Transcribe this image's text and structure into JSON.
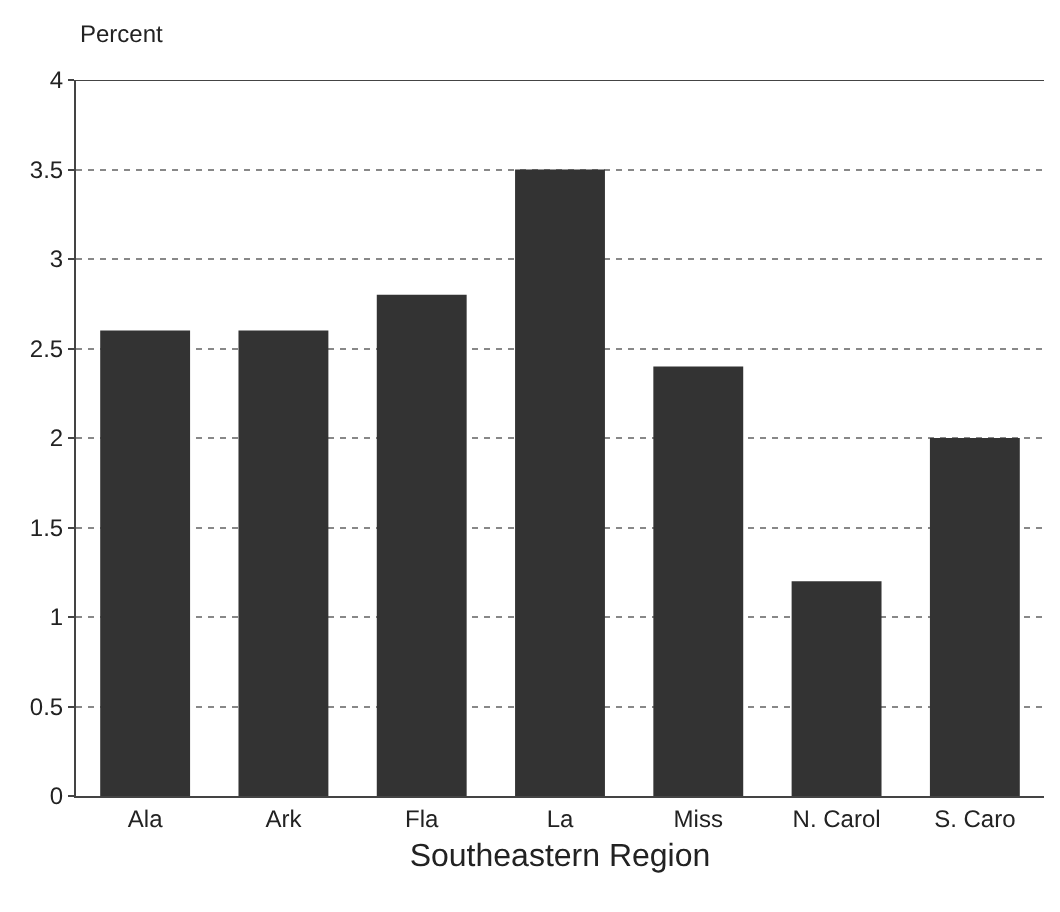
{
  "chart_data": {
    "type": "bar",
    "xlabel": "Southeastern Region",
    "ylabel": "Percent",
    "categories": [
      "Ala",
      "Ark",
      "Fla",
      "La",
      "Miss",
      "N. Carol",
      "S. Caro"
    ],
    "values": [
      2.6,
      2.6,
      2.8,
      3.5,
      2.4,
      1.2,
      2.0
    ],
    "color": "#333333",
    "ylim": [
      0,
      4
    ],
    "yticks": [
      0,
      0.5,
      1,
      1.5,
      2,
      2.5,
      3,
      3.5,
      4
    ],
    "grid": "y"
  }
}
